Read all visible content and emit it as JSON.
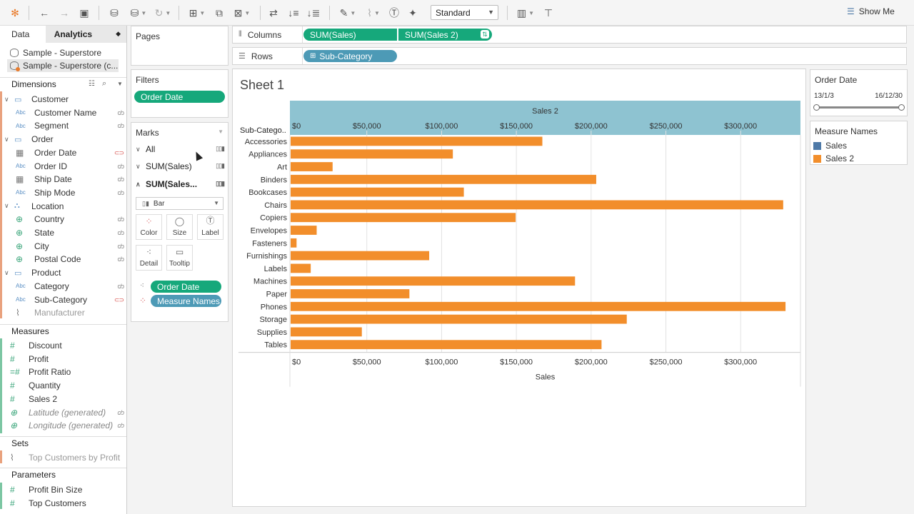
{
  "toolbar": {
    "fit_value": "Standard",
    "show_me_label": "Show Me"
  },
  "data_pane": {
    "tab_data": "Data",
    "tab_analytics": "Analytics",
    "datasources": [
      "Sample - Superstore",
      "Sample - Superstore (c..."
    ],
    "dimensions_label": "Dimensions",
    "measures_label": "Measures",
    "sets_label": "Sets",
    "parameters_label": "Parameters",
    "dimension_groups": [
      {
        "name": "Customer",
        "fields": [
          {
            "type": "Abc",
            "name": "Customer Name"
          },
          {
            "type": "Abc",
            "name": "Segment"
          }
        ]
      },
      {
        "name": "Order",
        "fields": [
          {
            "type": "date",
            "name": "Order Date",
            "linked": true
          },
          {
            "type": "Abc",
            "name": "Order ID"
          },
          {
            "type": "date",
            "name": "Ship Date"
          },
          {
            "type": "Abc",
            "name": "Ship Mode"
          }
        ]
      },
      {
        "name": "Location",
        "fields": [
          {
            "type": "geo",
            "name": "Country"
          },
          {
            "type": "geo",
            "name": "State"
          },
          {
            "type": "geo",
            "name": "City"
          },
          {
            "type": "geo",
            "name": "Postal Code"
          }
        ]
      },
      {
        "name": "Product",
        "fields": [
          {
            "type": "Abc",
            "name": "Category"
          },
          {
            "type": "Abc",
            "name": "Sub-Category",
            "linked": true
          },
          {
            "type": "clip",
            "name": "Manufacturer",
            "dim": true
          }
        ]
      }
    ],
    "measures": [
      {
        "type": "#",
        "name": "Discount"
      },
      {
        "type": "#",
        "name": "Profit"
      },
      {
        "type": "=#",
        "name": "Profit Ratio"
      },
      {
        "type": "#",
        "name": "Quantity"
      },
      {
        "type": "#",
        "name": "Sales 2"
      },
      {
        "type": "geo",
        "name": "Latitude (generated)",
        "italic": true
      },
      {
        "type": "geo",
        "name": "Longitude (generated)",
        "italic": true
      }
    ],
    "sets": [
      {
        "name": "Top Customers by Profit"
      }
    ],
    "parameters": [
      {
        "type": "#",
        "name": "Profit Bin Size"
      },
      {
        "type": "#",
        "name": "Top Customers"
      }
    ]
  },
  "pages_card": {
    "title": "Pages"
  },
  "filters_card": {
    "title": "Filters",
    "pills": [
      "Order Date"
    ]
  },
  "marks_card": {
    "title": "Marks",
    "rows": [
      "All",
      "SUM(Sales)",
      "SUM(Sales..."
    ],
    "mark_type": "Bar",
    "buttons": [
      "Color",
      "Size",
      "Label",
      "Detail",
      "Tooltip"
    ],
    "pills": [
      "Order Date",
      "Measure Names"
    ]
  },
  "shelves": {
    "columns_label": "Columns",
    "rows_label": "Rows",
    "columns_pills": [
      "SUM(Sales)",
      "SUM(Sales 2)"
    ],
    "rows_pills": [
      "Sub-Category"
    ]
  },
  "sheet": {
    "title": "Sheet 1"
  },
  "order_date_filter": {
    "title": "Order Date",
    "start": "13/1/3",
    "end": "16/12/30",
    "range": [
      0,
      1
    ]
  },
  "legend": {
    "title": "Measure Names",
    "items": [
      {
        "name": "Sales",
        "color": "#4e79a7"
      },
      {
        "name": "Sales 2",
        "color": "#f28e2b"
      }
    ]
  },
  "chart_data": {
    "type": "bar",
    "orientation": "horizontal",
    "row_header": "Sub-Catego..",
    "top_axis_title": "Sales 2",
    "bottom_axis_title": "Sales",
    "xlim": [
      0,
      340000
    ],
    "ticks": [
      0,
      50000,
      100000,
      150000,
      200000,
      250000,
      300000
    ],
    "tick_labels": [
      "$0",
      "$50,000",
      "$100,000",
      "$150,000",
      "$200,000",
      "$250,000",
      "$300,000"
    ],
    "categories": [
      "Accessories",
      "Appliances",
      "Art",
      "Binders",
      "Bookcases",
      "Chairs",
      "Copiers",
      "Envelopes",
      "Fasteners",
      "Furnishings",
      "Labels",
      "Machines",
      "Paper",
      "Phones",
      "Storage",
      "Supplies",
      "Tables"
    ],
    "series": [
      {
        "name": "Sales 2",
        "color": "#f28e2b",
        "values": [
          167380,
          107530,
          27119,
          203413,
          114880,
          328449,
          149528,
          16476,
          3024,
          91705,
          12486,
          189239,
          78479,
          330007,
          223844,
          46674,
          206966
        ]
      }
    ],
    "header_color": "#8ec3d1",
    "grid": true
  }
}
